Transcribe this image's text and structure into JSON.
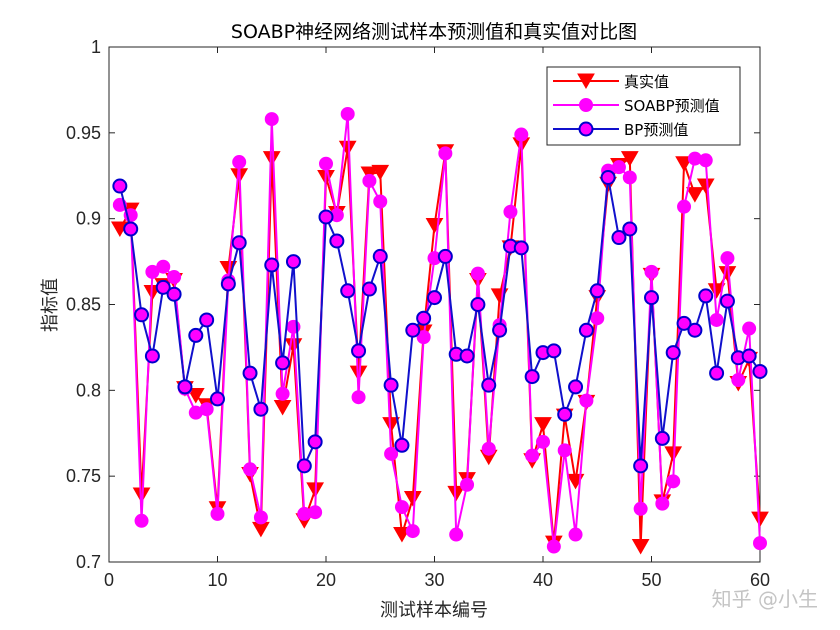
{
  "watermark": "知乎 @小生",
  "chart_data": {
    "type": "line",
    "title": "SOABP神经网络测试样本预测值和真实值对比图",
    "xlabel": "测试样本编号",
    "ylabel": "指标值",
    "xlim": [
      0,
      60
    ],
    "ylim": [
      0.7,
      1.0
    ],
    "xticks": [
      0,
      10,
      20,
      30,
      40,
      50,
      60
    ],
    "xtick_labels": [
      "0",
      "10",
      "20",
      "30",
      "40",
      "50",
      "60"
    ],
    "yticks": [
      0.7,
      0.75,
      0.8,
      0.85,
      0.9,
      0.95,
      1.0
    ],
    "ytick_labels": [
      "0.7",
      "0.75",
      "0.8",
      "0.85",
      "0.9",
      "0.95",
      "1"
    ],
    "grid": false,
    "legend_position": "top-right",
    "x": [
      1,
      2,
      3,
      4,
      5,
      6,
      7,
      8,
      9,
      10,
      11,
      12,
      13,
      14,
      15,
      16,
      17,
      18,
      19,
      20,
      21,
      22,
      23,
      24,
      25,
      26,
      27,
      28,
      29,
      30,
      31,
      32,
      33,
      34,
      35,
      36,
      37,
      38,
      39,
      40,
      41,
      42,
      43,
      44,
      45,
      46,
      47,
      48,
      49,
      50,
      51,
      52,
      53,
      54,
      55,
      56,
      57,
      58,
      59,
      60
    ],
    "series": [
      {
        "name": "真实值",
        "color": "#ff0000",
        "marker": "triangle-down",
        "values": [
          0.894,
          0.905,
          0.739,
          0.857,
          0.861,
          0.864,
          0.801,
          0.797,
          0.791,
          0.731,
          0.871,
          0.925,
          0.751,
          0.719,
          0.935,
          0.79,
          0.826,
          0.724,
          0.742,
          0.924,
          0.903,
          0.941,
          0.81,
          0.926,
          0.927,
          0.78,
          0.716,
          0.737,
          0.834,
          0.896,
          0.939,
          0.74,
          0.748,
          0.864,
          0.761,
          0.855,
          0.883,
          0.943,
          0.759,
          0.78,
          0.711,
          0.785,
          0.747,
          0.793,
          0.854,
          0.92,
          0.931,
          0.935,
          0.709,
          0.867,
          0.735,
          0.763,
          0.932,
          0.914,
          0.919,
          0.858,
          0.868,
          0.804,
          0.818,
          0.725
        ]
      },
      {
        "name": "SOABP预测值",
        "color": "#ff00ff",
        "marker": "circle",
        "values": [
          0.908,
          0.902,
          0.724,
          0.869,
          0.872,
          0.866,
          0.801,
          0.787,
          0.789,
          0.728,
          0.864,
          0.933,
          0.754,
          0.726,
          0.958,
          0.798,
          0.837,
          0.728,
          0.729,
          0.932,
          0.902,
          0.961,
          0.796,
          0.922,
          0.91,
          0.763,
          0.732,
          0.718,
          0.831,
          0.877,
          0.938,
          0.716,
          0.745,
          0.868,
          0.766,
          0.838,
          0.904,
          0.949,
          0.762,
          0.77,
          0.709,
          0.765,
          0.716,
          0.794,
          0.842,
          0.928,
          0.93,
          0.924,
          0.731,
          0.869,
          0.734,
          0.747,
          0.907,
          0.935,
          0.934,
          0.841,
          0.877,
          0.806,
          0.836,
          0.711
        ]
      },
      {
        "name": "BP预测值",
        "color": "#0000cc",
        "marker": "circle-filled-magenta",
        "values": [
          0.919,
          0.894,
          0.844,
          0.82,
          0.86,
          0.856,
          0.802,
          0.832,
          0.841,
          0.795,
          0.862,
          0.886,
          0.81,
          0.789,
          0.873,
          0.816,
          0.875,
          0.756,
          0.77,
          0.901,
          0.887,
          0.858,
          0.823,
          0.859,
          0.878,
          0.803,
          0.768,
          0.835,
          0.842,
          0.854,
          0.878,
          0.821,
          0.82,
          0.85,
          0.803,
          0.835,
          0.884,
          0.883,
          0.808,
          0.822,
          0.823,
          0.786,
          0.802,
          0.835,
          0.858,
          0.924,
          0.889,
          0.894,
          0.756,
          0.854,
          0.772,
          0.822,
          0.839,
          0.835,
          0.855,
          0.81,
          0.852,
          0.819,
          0.82,
          0.811
        ]
      }
    ]
  }
}
